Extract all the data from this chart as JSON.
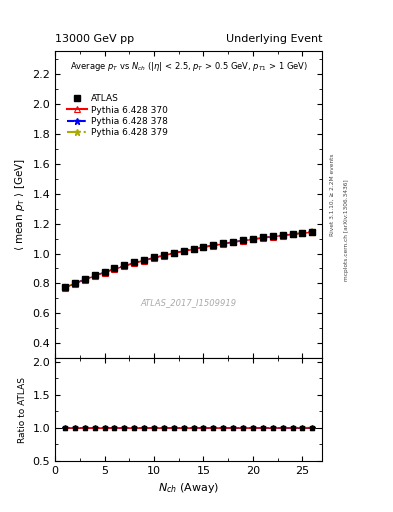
{
  "title_left": "13000 GeV pp",
  "title_right": "Underlying Event",
  "plot_title": "Average $p_T$ vs $N_{ch}$ ($|\\eta|$ < 2.5, $p_T$ > 0.5 GeV, $p_{T1}$ > 1 GeV)",
  "xlabel": "$N_{ch}$ (Away)",
  "ylabel_main": "$\\langle$ mean $p_T$ $\\rangle$ [GeV]",
  "ylabel_ratio": "Ratio to ATLAS",
  "watermark": "ATLAS_2017_I1509919",
  "right_label_top": "Rivet 3.1.10, ≥ 2.2M events",
  "right_label_bot": "mcplots.cern.ch [arXiv:1306.3436]",
  "xlim": [
    0,
    27
  ],
  "ylim_main": [
    0.3,
    2.35
  ],
  "ylim_ratio": [
    0.5,
    2.05
  ],
  "yticks_main": [
    0.4,
    0.6,
    0.8,
    1.0,
    1.2,
    1.4,
    1.6,
    1.8,
    2.0,
    2.2
  ],
  "yticks_ratio": [
    0.5,
    1.0,
    1.5,
    2.0
  ],
  "atlas_x": [
    1,
    2,
    3,
    4,
    5,
    6,
    7,
    8,
    9,
    10,
    11,
    12,
    13,
    14,
    15,
    16,
    17,
    18,
    19,
    20,
    21,
    22,
    23,
    24,
    25,
    26
  ],
  "atlas_y": [
    0.775,
    0.8,
    0.83,
    0.855,
    0.878,
    0.9,
    0.921,
    0.94,
    0.958,
    0.975,
    0.991,
    1.006,
    1.02,
    1.033,
    1.046,
    1.058,
    1.069,
    1.079,
    1.089,
    1.098,
    1.107,
    1.115,
    1.123,
    1.13,
    1.137,
    1.144
  ],
  "atlas_yerr": [
    0.008,
    0.006,
    0.005,
    0.005,
    0.005,
    0.005,
    0.004,
    0.004,
    0.004,
    0.004,
    0.004,
    0.004,
    0.004,
    0.004,
    0.004,
    0.004,
    0.004,
    0.004,
    0.004,
    0.004,
    0.005,
    0.005,
    0.005,
    0.006,
    0.006,
    0.007
  ],
  "py370_y": [
    0.772,
    0.798,
    0.825,
    0.85,
    0.873,
    0.895,
    0.916,
    0.935,
    0.953,
    0.97,
    0.986,
    1.001,
    1.015,
    1.028,
    1.041,
    1.053,
    1.064,
    1.075,
    1.085,
    1.094,
    1.103,
    1.112,
    1.12,
    1.128,
    1.135,
    1.142
  ],
  "py378_y": [
    0.774,
    0.8,
    0.827,
    0.852,
    0.875,
    0.897,
    0.918,
    0.937,
    0.955,
    0.972,
    0.988,
    1.003,
    1.017,
    1.03,
    1.043,
    1.055,
    1.066,
    1.077,
    1.087,
    1.096,
    1.105,
    1.113,
    1.121,
    1.129,
    1.136,
    1.143
  ],
  "py379_y": [
    0.775,
    0.801,
    0.828,
    0.853,
    0.876,
    0.898,
    0.919,
    0.938,
    0.956,
    0.973,
    0.989,
    1.004,
    1.018,
    1.031,
    1.044,
    1.056,
    1.067,
    1.078,
    1.088,
    1.097,
    1.106,
    1.115,
    1.124,
    1.132,
    1.14,
    1.148
  ],
  "atlas_color": "#000000",
  "py370_color": "#ff0000",
  "py378_color": "#0000ff",
  "py379_color": "#aaaa00",
  "bg_color": "#ffffff"
}
